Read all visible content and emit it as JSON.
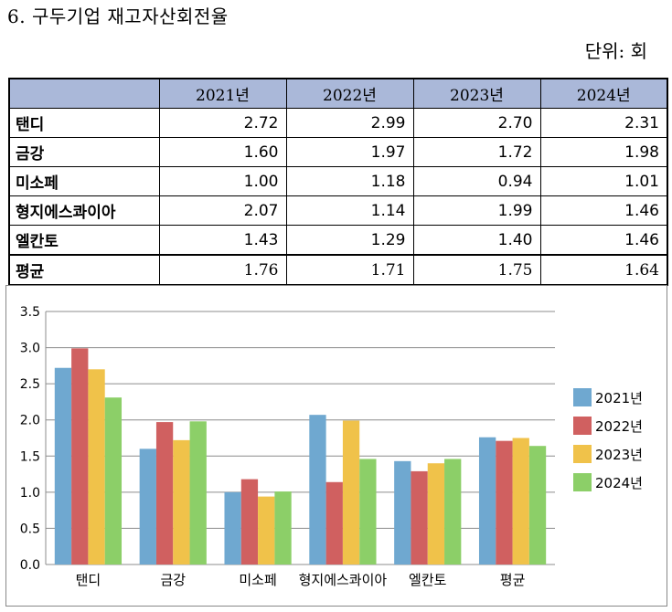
{
  "header": {
    "title": "6. 구두기업 재고자산회전율",
    "unit": "단위: 회"
  },
  "table": {
    "columns": [
      "2021년",
      "2022년",
      "2023년",
      "2024년"
    ],
    "rows": [
      {
        "name": "탠디",
        "values": [
          "2.72",
          "2.99",
          "2.70",
          "2.31"
        ]
      },
      {
        "name": "금강",
        "values": [
          "1.60",
          "1.97",
          "1.72",
          "1.98"
        ]
      },
      {
        "name": "미소페",
        "values": [
          "1.00",
          "1.18",
          "0.94",
          "1.01"
        ]
      },
      {
        "name": "형지에스콰이아",
        "values": [
          "2.07",
          "1.14",
          "1.99",
          "1.46"
        ]
      },
      {
        "name": "엘칸토",
        "values": [
          "1.43",
          "1.29",
          "1.40",
          "1.46"
        ]
      }
    ],
    "average": {
      "name": "평균",
      "values": [
        "1.76",
        "1.71",
        "1.75",
        "1.64"
      ]
    }
  },
  "chart_data": {
    "type": "bar",
    "categories": [
      "탠디",
      "금강",
      "미소페",
      "형지에스콰이아",
      "엘칸토",
      "평균"
    ],
    "series": [
      {
        "name": "2021년",
        "color": "#6fa8d0",
        "values": [
          2.72,
          1.6,
          1.0,
          2.07,
          1.43,
          1.76
        ]
      },
      {
        "name": "2022년",
        "color": "#d06060",
        "values": [
          2.99,
          1.97,
          1.18,
          1.14,
          1.29,
          1.71
        ]
      },
      {
        "name": "2023년",
        "color": "#f0c24a",
        "values": [
          2.7,
          1.72,
          0.94,
          1.99,
          1.4,
          1.75
        ]
      },
      {
        "name": "2024년",
        "color": "#8ccf68",
        "values": [
          2.31,
          1.98,
          1.01,
          1.46,
          1.46,
          1.64
        ]
      }
    ],
    "ylim": [
      0,
      3.5
    ],
    "yticks": [
      "0.0",
      "0.5",
      "1.0",
      "1.5",
      "2.0",
      "2.5",
      "3.0",
      "3.5"
    ],
    "grid": true,
    "legend": "right"
  }
}
